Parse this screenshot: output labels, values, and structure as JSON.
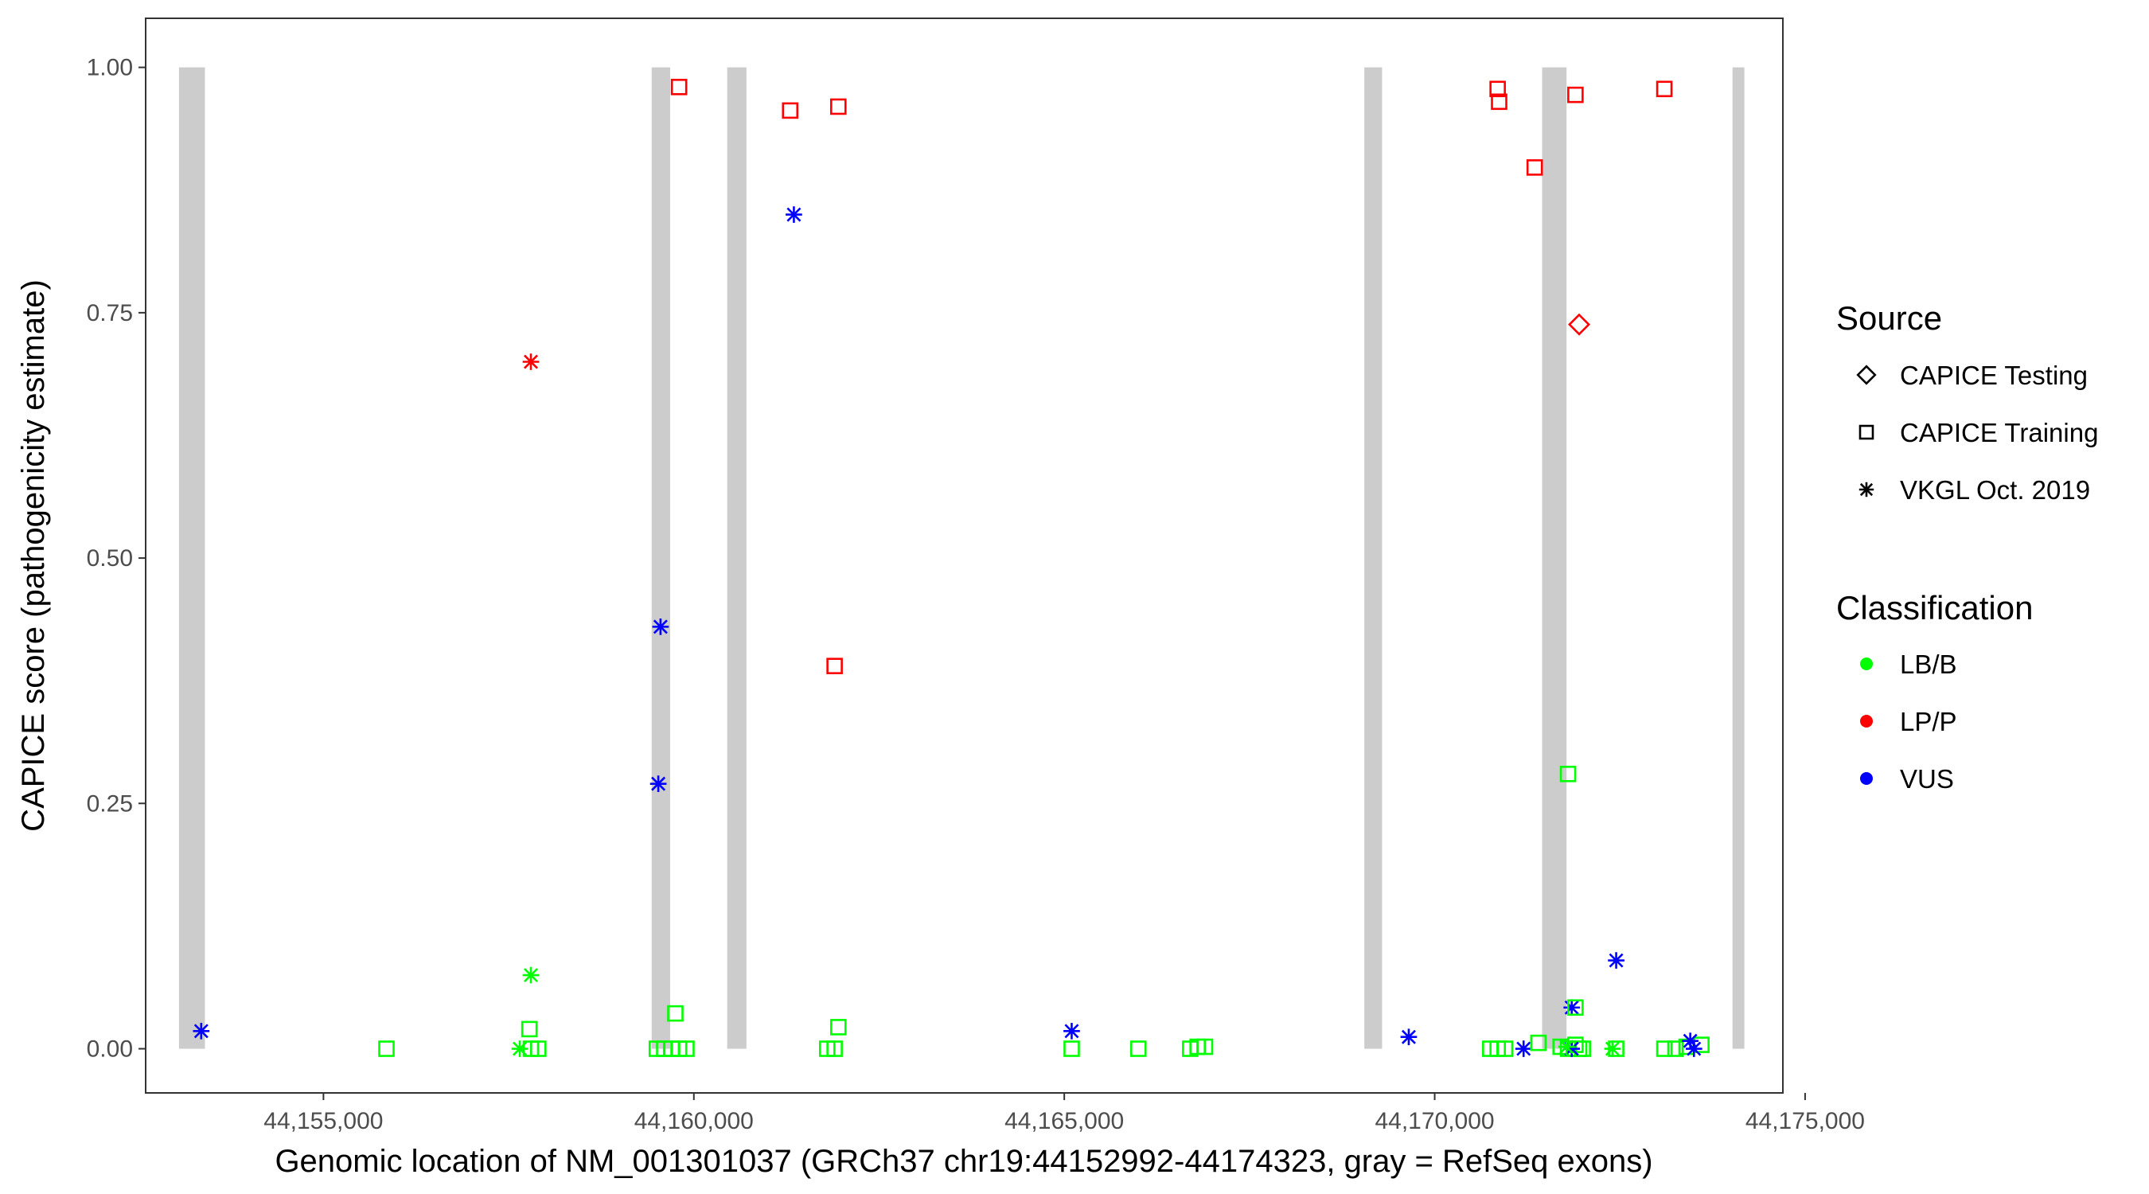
{
  "chart_data": {
    "type": "scatter",
    "title": "",
    "xlabel": "Genomic location of NM_001301037 (GRCh37 chr19:44152992-44174323, gray = RefSeq exons)",
    "ylabel": "CAPICE score (pathogenicity estimate)",
    "xlim": [
      44152600,
      44174700
    ],
    "ylim": [
      -0.045,
      1.05
    ],
    "x_ticks": [
      44155000,
      44160000,
      44165000,
      44170000,
      44175000
    ],
    "x_tick_labels": [
      "44,155,000",
      "44,160,000",
      "44,165,000",
      "44,170,000",
      "44,175,000"
    ],
    "y_ticks": [
      0,
      0.25,
      0.5,
      0.75,
      1.0
    ],
    "y_tick_labels": [
      "0.00",
      "0.25",
      "0.50",
      "0.75",
      "1.00"
    ],
    "grid": false,
    "exons": [
      {
        "start": 44153050,
        "end": 44153400
      },
      {
        "start": 44159430,
        "end": 44159680
      },
      {
        "start": 44160450,
        "end": 44160710
      },
      {
        "start": 44169050,
        "end": 44169290
      },
      {
        "start": 44171450,
        "end": 44171780
      },
      {
        "start": 44174020,
        "end": 44174180
      }
    ],
    "exon_color": "#cccccc",
    "legend": {
      "placement": "right",
      "source_title": "Source",
      "source_items": [
        {
          "label": "CAPICE Testing",
          "shape": "diamond"
        },
        {
          "label": "CAPICE Training",
          "shape": "square"
        },
        {
          "label": "VKGL Oct. 2019",
          "shape": "asterisk"
        }
      ],
      "classification_title": "Classification",
      "classification_items": [
        {
          "label": "LB/B",
          "color": "#00ff00"
        },
        {
          "label": "LP/P",
          "color": "#ff0000"
        },
        {
          "label": "VUS",
          "color": "#0000ff"
        }
      ]
    },
    "points": [
      {
        "x": 44153350,
        "y": 0.018,
        "shape": "asterisk",
        "cls": "VUS"
      },
      {
        "x": 44155850,
        "y": 0.0,
        "shape": "square",
        "cls": "LB/B"
      },
      {
        "x": 44157650,
        "y": 0.0,
        "shape": "asterisk",
        "cls": "LB/B"
      },
      {
        "x": 44157800,
        "y": 0.075,
        "shape": "asterisk",
        "cls": "LB/B"
      },
      {
        "x": 44157800,
        "y": 0.7,
        "shape": "asterisk",
        "cls": "LP/P"
      },
      {
        "x": 44157780,
        "y": 0.02,
        "shape": "square",
        "cls": "LB/B"
      },
      {
        "x": 44157800,
        "y": 0.0,
        "shape": "square",
        "cls": "LB/B"
      },
      {
        "x": 44157900,
        "y": 0.0,
        "shape": "square",
        "cls": "LB/B"
      },
      {
        "x": 44159550,
        "y": 0.43,
        "shape": "asterisk",
        "cls": "VUS"
      },
      {
        "x": 44159520,
        "y": 0.27,
        "shape": "asterisk",
        "cls": "VUS"
      },
      {
        "x": 44159500,
        "y": 0.0,
        "shape": "square",
        "cls": "LB/B"
      },
      {
        "x": 44159600,
        "y": 0.0,
        "shape": "square",
        "cls": "LB/B"
      },
      {
        "x": 44159700,
        "y": 0.0,
        "shape": "square",
        "cls": "LB/B"
      },
      {
        "x": 44159800,
        "y": 0.0,
        "shape": "square",
        "cls": "LB/B"
      },
      {
        "x": 44159900,
        "y": 0.0,
        "shape": "square",
        "cls": "LB/B"
      },
      {
        "x": 44159750,
        "y": 0.036,
        "shape": "square",
        "cls": "LB/B"
      },
      {
        "x": 44159800,
        "y": 0.98,
        "shape": "square",
        "cls": "LP/P"
      },
      {
        "x": 44161300,
        "y": 0.956,
        "shape": "square",
        "cls": "LP/P"
      },
      {
        "x": 44161350,
        "y": 0.85,
        "shape": "asterisk",
        "cls": "VUS"
      },
      {
        "x": 44161950,
        "y": 0.96,
        "shape": "square",
        "cls": "LP/P"
      },
      {
        "x": 44161900,
        "y": 0.39,
        "shape": "square",
        "cls": "LP/P"
      },
      {
        "x": 44161950,
        "y": 0.022,
        "shape": "square",
        "cls": "LB/B"
      },
      {
        "x": 44161800,
        "y": 0.0,
        "shape": "square",
        "cls": "LB/B"
      },
      {
        "x": 44161900,
        "y": 0.0,
        "shape": "square",
        "cls": "LB/B"
      },
      {
        "x": 44165100,
        "y": 0.018,
        "shape": "asterisk",
        "cls": "VUS"
      },
      {
        "x": 44165100,
        "y": 0.0,
        "shape": "square",
        "cls": "LB/B"
      },
      {
        "x": 44166000,
        "y": 0.0,
        "shape": "square",
        "cls": "LB/B"
      },
      {
        "x": 44166700,
        "y": 0.0,
        "shape": "square",
        "cls": "LB/B"
      },
      {
        "x": 44166800,
        "y": 0.002,
        "shape": "square",
        "cls": "LB/B"
      },
      {
        "x": 44166900,
        "y": 0.002,
        "shape": "square",
        "cls": "LB/B"
      },
      {
        "x": 44169650,
        "y": 0.012,
        "shape": "asterisk",
        "cls": "VUS"
      },
      {
        "x": 44170750,
        "y": 0.0,
        "shape": "square",
        "cls": "LB/B"
      },
      {
        "x": 44170850,
        "y": 0.0,
        "shape": "square",
        "cls": "LB/B"
      },
      {
        "x": 44170950,
        "y": 0.0,
        "shape": "square",
        "cls": "LB/B"
      },
      {
        "x": 44170850,
        "y": 0.978,
        "shape": "square",
        "cls": "LP/P"
      },
      {
        "x": 44170870,
        "y": 0.965,
        "shape": "square",
        "cls": "LP/P"
      },
      {
        "x": 44171350,
        "y": 0.898,
        "shape": "square",
        "cls": "LP/P"
      },
      {
        "x": 44171200,
        "y": 0.0,
        "shape": "asterisk",
        "cls": "VUS"
      },
      {
        "x": 44171400,
        "y": 0.006,
        "shape": "square",
        "cls": "LB/B"
      },
      {
        "x": 44171800,
        "y": 0.28,
        "shape": "square",
        "cls": "LB/B"
      },
      {
        "x": 44171900,
        "y": 0.972,
        "shape": "square",
        "cls": "LP/P"
      },
      {
        "x": 44171950,
        "y": 0.738,
        "shape": "diamond",
        "cls": "LP/P"
      },
      {
        "x": 44171850,
        "y": 0.042,
        "shape": "asterisk",
        "cls": "VUS"
      },
      {
        "x": 44171900,
        "y": 0.042,
        "shape": "square",
        "cls": "LB/B"
      },
      {
        "x": 44171700,
        "y": 0.002,
        "shape": "square",
        "cls": "LB/B"
      },
      {
        "x": 44171800,
        "y": 0.0,
        "shape": "square",
        "cls": "LB/B"
      },
      {
        "x": 44171900,
        "y": 0.004,
        "shape": "square",
        "cls": "LB/B"
      },
      {
        "x": 44171950,
        "y": 0.0,
        "shape": "square",
        "cls": "LB/B"
      },
      {
        "x": 44172000,
        "y": 0.0,
        "shape": "square",
        "cls": "LB/B"
      },
      {
        "x": 44171850,
        "y": 0.0,
        "shape": "asterisk",
        "cls": "VUS"
      },
      {
        "x": 44171780,
        "y": 0.002,
        "shape": "asterisk",
        "cls": "LB/B"
      },
      {
        "x": 44172450,
        "y": 0.09,
        "shape": "asterisk",
        "cls": "VUS"
      },
      {
        "x": 44172400,
        "y": 0.0,
        "shape": "asterisk",
        "cls": "LB/B"
      },
      {
        "x": 44172450,
        "y": 0.0,
        "shape": "square",
        "cls": "LB/B"
      },
      {
        "x": 44173100,
        "y": 0.978,
        "shape": "square",
        "cls": "LP/P"
      },
      {
        "x": 44173100,
        "y": 0.0,
        "shape": "square",
        "cls": "LB/B"
      },
      {
        "x": 44173250,
        "y": 0.0,
        "shape": "square",
        "cls": "LB/B"
      },
      {
        "x": 44173400,
        "y": 0.002,
        "shape": "square",
        "cls": "LB/B"
      },
      {
        "x": 44173600,
        "y": 0.004,
        "shape": "square",
        "cls": "LB/B"
      },
      {
        "x": 44173450,
        "y": 0.008,
        "shape": "asterisk",
        "cls": "VUS"
      },
      {
        "x": 44173500,
        "y": 0.0,
        "shape": "asterisk",
        "cls": "VUS"
      }
    ]
  }
}
